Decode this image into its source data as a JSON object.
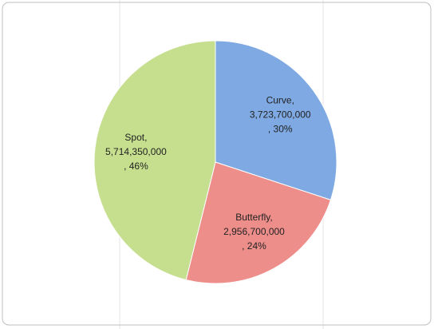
{
  "chart_data": {
    "type": "pie",
    "values": [
      3723700000,
      2956700000,
      5714350000
    ],
    "labels": [
      [
        "Curve,",
        "3,723,700,000",
        ", 30%"
      ],
      [
        "Butterfly,",
        "2,956,700,000",
        ", 24%"
      ],
      [
        "Spot,",
        "5,714,350,000",
        ", 46%"
      ]
    ],
    "colors": [
      "#7fa9e2",
      "#ee8e8b",
      "#c6df8e"
    ]
  }
}
